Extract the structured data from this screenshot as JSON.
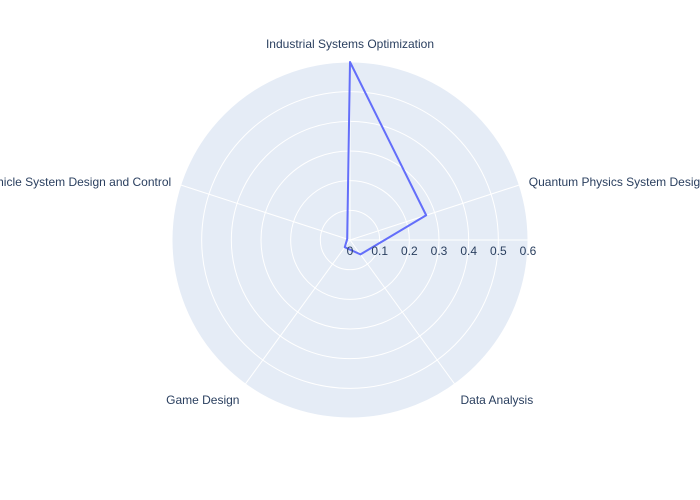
{
  "chart_data": {
    "type": "radar",
    "categories": [
      "Industrial Systems Optimization",
      "Quantum Physics System Design",
      "Data Analysis",
      "Game Design",
      "Vehicle System Design and Control"
    ],
    "series": [
      {
        "values": [
          0.6,
          0.27,
          0.06,
          0.03,
          0.01
        ]
      }
    ],
    "radial_range": [
      0,
      0.6
    ],
    "radial_ticks": [
      "0",
      "0.1",
      "0.2",
      "0.3",
      "0.4",
      "0.5",
      "0.6"
    ],
    "grid": true,
    "colors": {
      "background": "#e5ecf6",
      "grid": "#ffffff",
      "line": "#636efa",
      "text": "#2a3f5f"
    }
  }
}
